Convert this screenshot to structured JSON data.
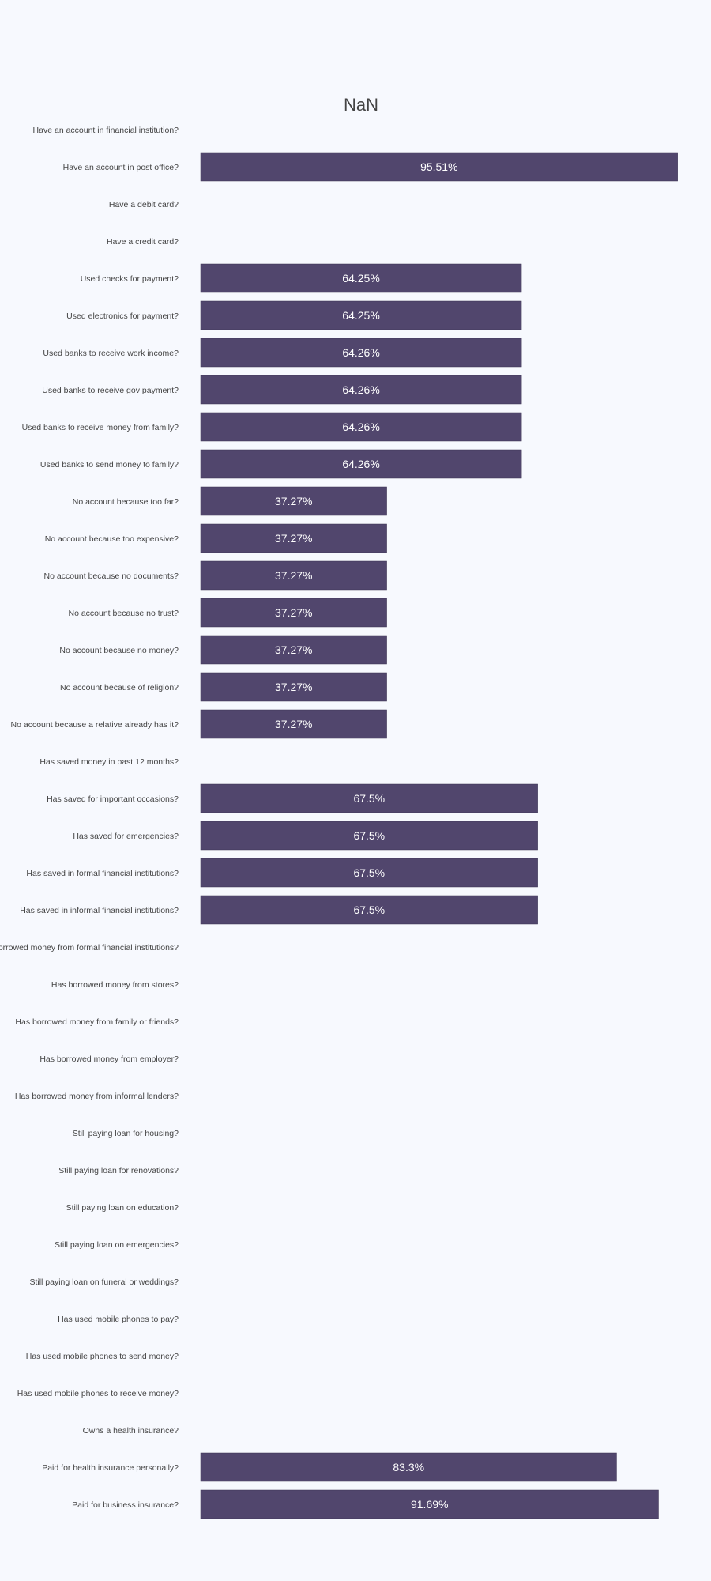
{
  "chart_data": {
    "type": "bar",
    "orientation": "horizontal",
    "title": "NaN",
    "bar_color": "#51466d",
    "background_color": "#f7f9fe",
    "xlim": [
      0,
      100
    ],
    "grid": false,
    "legend": "none",
    "categories": [
      "Have an account in financial institution?",
      "Have an account in post office?",
      "Have a debit card?",
      "Have a credit card?",
      "Used checks for payment?",
      "Used electronics for payment?",
      "Used banks to receive work income?",
      "Used banks to receive gov payment?",
      "Used banks to receive money from family?",
      "Used banks to send money to family?",
      "No account because too far?",
      "No account because too expensive?",
      "No account because no documents?",
      "No account because no trust?",
      "No account because no money?",
      "No account because of religion?",
      "No account because a relative already has it?",
      "Has saved money in past 12 months?",
      "Has saved for important occasions?",
      "Has saved for emergencies?",
      "Has saved in formal financial institutions?",
      "Has saved in informal financial institutions?",
      "Has borrowed money from formal financial institutions?",
      "Has borrowed money from stores?",
      "Has borrowed money from family or friends?",
      "Has borrowed money from employer?",
      "Has borrowed money from informal lenders?",
      "Still paying loan for housing?",
      "Still paying loan for renovations?",
      "Still paying loan on education?",
      "Still paying loan on emergencies?",
      "Still paying loan on funeral or weddings?",
      "Has used mobile phones to pay?",
      "Has used mobile phones to send money?",
      "Has used mobile phones to receive money?",
      "Owns a health insurance?",
      "Paid for health insurance personally?",
      "Paid for business insurance?"
    ],
    "values": [
      null,
      95.51,
      null,
      null,
      64.25,
      64.25,
      64.26,
      64.26,
      64.26,
      64.26,
      37.27,
      37.27,
      37.27,
      37.27,
      37.27,
      37.27,
      37.27,
      null,
      67.5,
      67.5,
      67.5,
      67.5,
      null,
      null,
      null,
      null,
      null,
      null,
      null,
      null,
      null,
      null,
      null,
      null,
      null,
      null,
      83.3,
      91.69
    ],
    "value_labels": [
      "",
      "95.51%",
      "",
      "",
      "64.25%",
      "64.25%",
      "64.26%",
      "64.26%",
      "64.26%",
      "64.26%",
      "37.27%",
      "37.27%",
      "37.27%",
      "37.27%",
      "37.27%",
      "37.27%",
      "37.27%",
      "",
      "67.5%",
      "67.5%",
      "67.5%",
      "67.5%",
      "",
      "",
      "",
      "",
      "",
      "",
      "",
      "",
      "",
      "",
      "",
      "",
      "",
      "",
      "83.3%",
      "91.69%"
    ]
  }
}
